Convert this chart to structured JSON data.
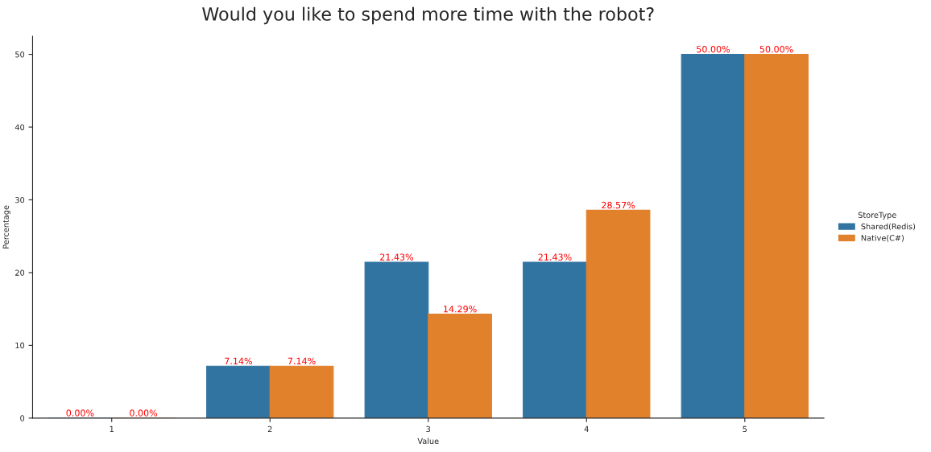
{
  "chart_data": {
    "type": "bar",
    "title": "Would you like to spend more time with the robot?",
    "xlabel": "Value",
    "ylabel": "Percentage",
    "legend_title": "StoreType",
    "categories": [
      "1",
      "2",
      "3",
      "4",
      "5"
    ],
    "series": [
      {
        "name": "Shared(Redis)",
        "color": "#3274a1",
        "values": [
          0,
          7.14,
          21.43,
          21.43,
          50
        ],
        "value_labels": [
          "0.00%",
          "7.14%",
          "21.43%",
          "21.43%",
          "50.00%"
        ]
      },
      {
        "name": "Native(C#)",
        "color": "#e1812c",
        "values": [
          0,
          7.14,
          14.29,
          28.57,
          50
        ],
        "value_labels": [
          "0.00%",
          "7.14%",
          "14.29%",
          "28.57%",
          "50.00%"
        ]
      }
    ],
    "ylim": [
      0,
      52.5
    ],
    "yticks": [
      0,
      10,
      20,
      30,
      40,
      50
    ],
    "grid": false,
    "legend": "right"
  }
}
